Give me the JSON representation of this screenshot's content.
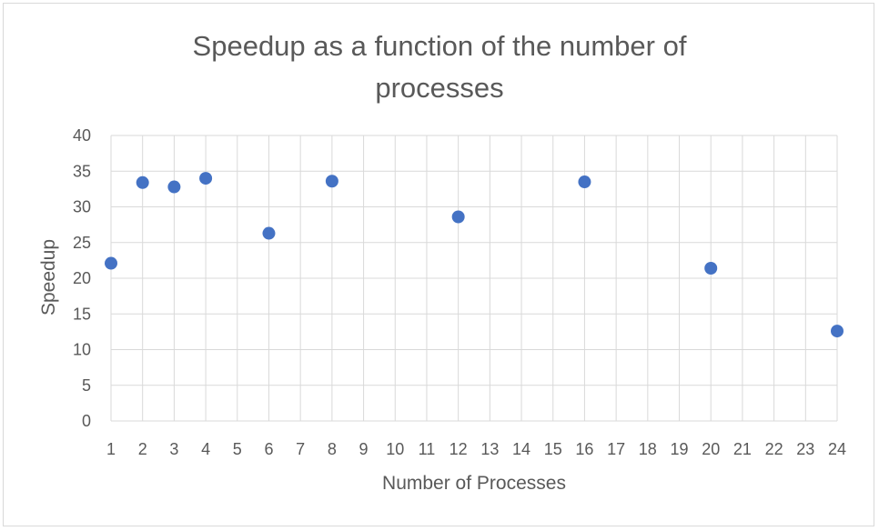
{
  "chart_data": {
    "type": "scatter",
    "title_lines": [
      "Speedup as a function of the number of",
      "processes"
    ],
    "title": "Speedup as a function of the number of processes",
    "xlabel": "Number of Processes",
    "ylabel": "Speedup",
    "x_categories": [
      "1",
      "2",
      "3",
      "4",
      "5",
      "6",
      "7",
      "8",
      "9",
      "10",
      "11",
      "12",
      "13",
      "14",
      "15",
      "16",
      "17",
      "18",
      "19",
      "20",
      "21",
      "22",
      "23",
      "24"
    ],
    "y_ticks": [
      "0",
      "5",
      "10",
      "15",
      "20",
      "25",
      "30",
      "35",
      "40"
    ],
    "ylim": [
      0,
      40
    ],
    "grid": true,
    "legend": "none",
    "marker_color": "#4472c4",
    "grid_color": "#d9d9d9",
    "series": [
      {
        "points": [
          {
            "x": "1",
            "y": 22.1
          },
          {
            "x": "2",
            "y": 33.4
          },
          {
            "x": "3",
            "y": 32.8
          },
          {
            "x": "4",
            "y": 34.0
          },
          {
            "x": "6",
            "y": 26.3
          },
          {
            "x": "8",
            "y": 33.6
          },
          {
            "x": "12",
            "y": 28.6
          },
          {
            "x": "16",
            "y": 33.5
          },
          {
            "x": "20",
            "y": 21.4
          },
          {
            "x": "24",
            "y": 12.6
          }
        ]
      }
    ]
  }
}
